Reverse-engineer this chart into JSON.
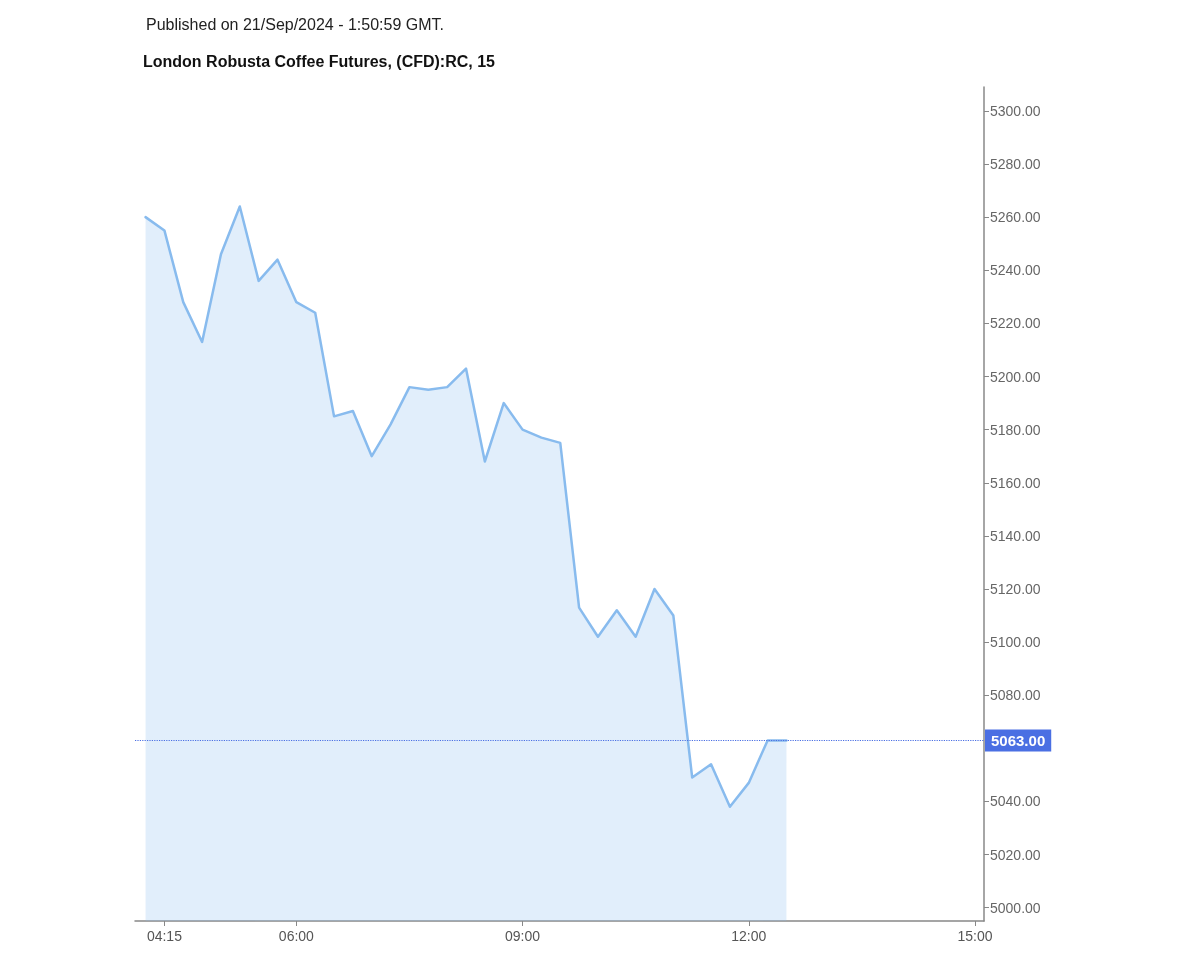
{
  "chart_data": {
    "type": "area",
    "title": "London Robusta Coffee Futures, (CFD):RC, 15",
    "annotations": [
      "Published on 21/Sep/2024 - 1:50:59 GMT."
    ],
    "x": [
      4,
      4.25,
      4.5,
      4.75,
      5,
      5.25,
      5.5,
      5.75,
      6,
      6.25,
      6.5,
      6.75,
      7,
      7.25,
      7.5,
      7.75,
      8,
      8.25,
      8.5,
      8.75,
      9,
      9.25,
      9.5,
      9.75,
      10,
      10.25,
      10.5,
      10.75,
      11,
      11.25,
      11.5,
      11.75,
      12,
      12.25,
      12.5
    ],
    "values": [
      5260,
      5255,
      5228,
      5213,
      5246,
      5264,
      5236,
      5244,
      5228,
      5224,
      5185,
      5187,
      5170,
      5182,
      5196,
      5195,
      5196,
      5203,
      5168,
      5190,
      5180,
      5177,
      5175,
      5113,
      5102,
      5112,
      5102,
      5120,
      5110,
      5049,
      5054,
      5038,
      5047,
      5063,
      5063
    ],
    "color": "#88bbee",
    "marker": "none",
    "xlim": [
      3.86,
      15.12
    ],
    "xticks": [
      {
        "value": 4.25,
        "label": "04:15"
      },
      {
        "value": 6,
        "label": "06:00"
      },
      {
        "value": 9,
        "label": "09:00"
      },
      {
        "value": 12,
        "label": "12:00"
      },
      {
        "value": 15,
        "label": "15:00"
      }
    ],
    "ylim": [
      4995,
      5309
    ],
    "yticks": [
      {
        "value": 5000,
        "label": "5000.00"
      },
      {
        "value": 5020,
        "label": "5020.00"
      },
      {
        "value": 5040,
        "label": "5040.00"
      },
      {
        "value": 5080,
        "label": "5080.00"
      },
      {
        "value": 5100,
        "label": "5100.00"
      },
      {
        "value": 5120,
        "label": "5120.00"
      },
      {
        "value": 5140,
        "label": "5140.00"
      },
      {
        "value": 5160,
        "label": "5160.00"
      },
      {
        "value": 5180,
        "label": "5180.00"
      },
      {
        "value": 5200,
        "label": "5200.00"
      },
      {
        "value": 5220,
        "label": "5220.00"
      },
      {
        "value": 5240,
        "label": "5240.00"
      },
      {
        "value": 5260,
        "label": "5260.00"
      },
      {
        "value": 5280,
        "label": "5280.00"
      },
      {
        "value": 5300,
        "label": "5300.00"
      }
    ],
    "ref_lines": [
      {
        "axis": "y",
        "value": 5063,
        "label": "5063.00",
        "color": "#4a6fe3",
        "line_style": "dotted"
      }
    ]
  }
}
